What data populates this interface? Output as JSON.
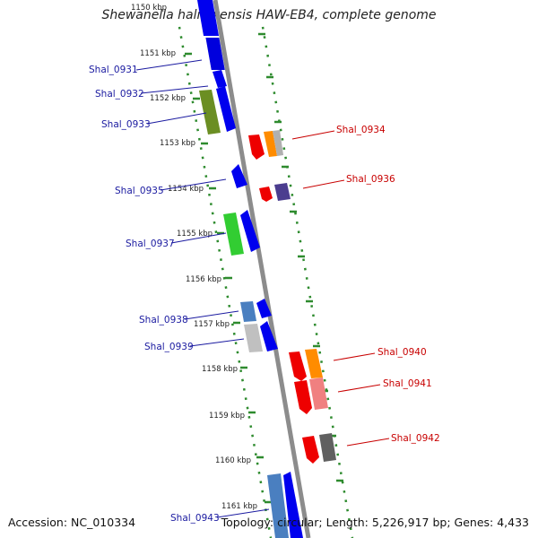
{
  "title": "Shewanella halifaxensis HAW-EB4, complete genome",
  "accession_text": "Accession: NC_010334",
  "summary_text": "Topology: circular; Length: 5,226,917 bp; Genes: 4,433",
  "colors": {
    "backbone": "#8c8c8c",
    "ring_dots": "#2e8b2e",
    "label_blue": "#1a1aa0",
    "label_red": "#c80000"
  },
  "ticks": [
    {
      "label": "1150 kbp",
      "kbp": 1150
    },
    {
      "label": "1151 kbp",
      "kbp": 1151
    },
    {
      "label": "1152 kbp",
      "kbp": 1152
    },
    {
      "label": "1153 kbp",
      "kbp": 1153
    },
    {
      "label": "1154 kbp",
      "kbp": 1154
    },
    {
      "label": "1155 kbp",
      "kbp": 1155
    },
    {
      "label": "1156 kbp",
      "kbp": 1156
    },
    {
      "label": "1157 kbp",
      "kbp": 1157
    },
    {
      "label": "1158 kbp",
      "kbp": 1158
    },
    {
      "label": "1159 kbp",
      "kbp": 1159
    },
    {
      "label": "1160 kbp",
      "kbp": 1160
    },
    {
      "label": "1161 kbp",
      "kbp": 1161
    }
  ],
  "genes_left": [
    {
      "label": "Shal_0931",
      "color": "#0000ee"
    },
    {
      "label": "Shal_0932",
      "color": "#0000ee"
    },
    {
      "label": "Shal_0933",
      "color": "#0000ee"
    },
    {
      "label": "Shal_0935",
      "color": "#0000ee"
    },
    {
      "label": "Shal_0937",
      "color": "#0000ee"
    },
    {
      "label": "Shal_0938",
      "color": "#0000ee"
    },
    {
      "label": "Shal_0939",
      "color": "#0000ee"
    },
    {
      "label": "Shal_0943",
      "color": "#0000ee"
    }
  ],
  "genes_right": [
    {
      "label": "Shal_0934",
      "color": "#ee0000"
    },
    {
      "label": "Shal_0936",
      "color": "#ee0000"
    },
    {
      "label": "Shal_0940",
      "color": "#ee0000"
    },
    {
      "label": "Shal_0941",
      "color": "#ee0000"
    },
    {
      "label": "Shal_0942",
      "color": "#ee0000"
    }
  ]
}
